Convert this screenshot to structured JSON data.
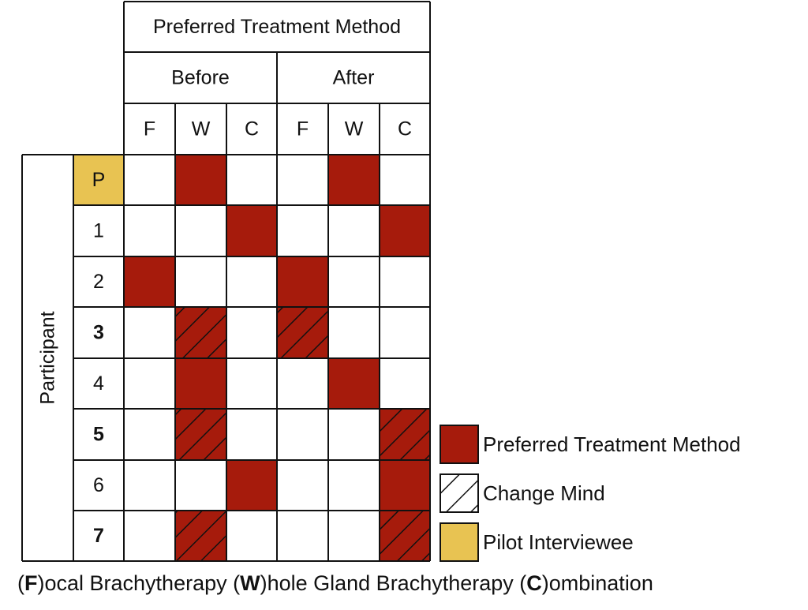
{
  "header": {
    "title": "Preferred Treatment Method",
    "groups": [
      "Before",
      "After"
    ],
    "columns": [
      "F",
      "W",
      "C",
      "F",
      "W",
      "C"
    ]
  },
  "row_axis_label": "Participant",
  "rows": [
    {
      "id": "P",
      "bold": false,
      "pilot": true,
      "before": "W",
      "after": "W",
      "changed": false
    },
    {
      "id": "1",
      "bold": false,
      "pilot": false,
      "before": "C",
      "after": "C",
      "changed": false
    },
    {
      "id": "2",
      "bold": false,
      "pilot": false,
      "before": "F",
      "after": "F",
      "changed": false
    },
    {
      "id": "3",
      "bold": true,
      "pilot": false,
      "before": "W",
      "after": "F",
      "changed": true
    },
    {
      "id": "4",
      "bold": false,
      "pilot": false,
      "before": "W",
      "after": "W",
      "changed": false
    },
    {
      "id": "5",
      "bold": true,
      "pilot": false,
      "before": "W",
      "after": "C",
      "changed": true
    },
    {
      "id": "6",
      "bold": false,
      "pilot": false,
      "before": "C",
      "after": "C",
      "changed": false
    },
    {
      "id": "7",
      "bold": true,
      "pilot": false,
      "before": "W",
      "after": "C",
      "changed": true
    }
  ],
  "legend": [
    {
      "key": "preferred",
      "label": "Preferred Treatment Method"
    },
    {
      "key": "change",
      "label": "Change Mind"
    },
    {
      "key": "pilot",
      "label": "Pilot Interviewee"
    }
  ],
  "footnote": [
    {
      "text": "(",
      "bold": false
    },
    {
      "text": "F",
      "bold": true
    },
    {
      "text": ")ocal Brachytherapy (",
      "bold": false
    },
    {
      "text": "W",
      "bold": true
    },
    {
      "text": ")hole Gland Brachytherapy (",
      "bold": false
    },
    {
      "text": "C",
      "bold": true
    },
    {
      "text": ")ombination",
      "bold": false
    }
  ],
  "colors": {
    "preferred": "#a61b0c",
    "pilot": "#e8c352",
    "grid": "#111111"
  }
}
